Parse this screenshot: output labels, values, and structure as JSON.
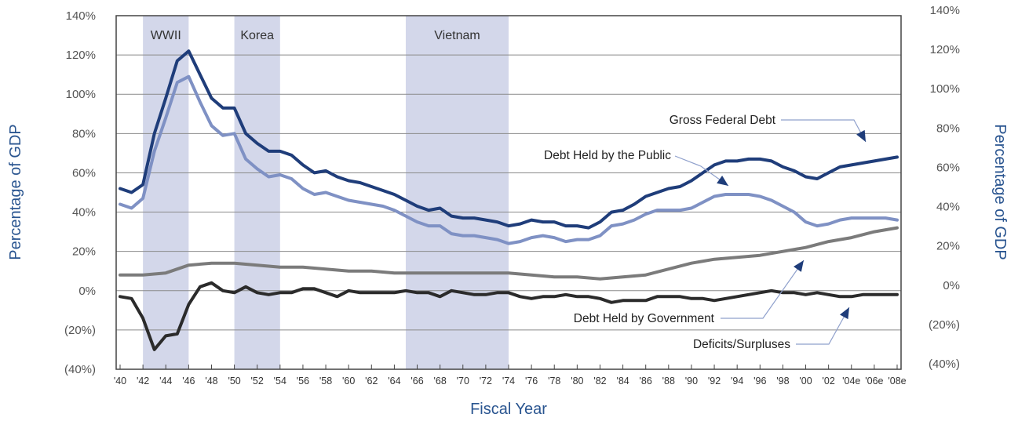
{
  "chart_data": {
    "type": "line",
    "xlabel": "Fiscal Year",
    "ylabel_left": "Percentage of GDP",
    "ylabel_right": "Percentage of GDP",
    "ylim": [
      -40,
      140
    ],
    "y_ticks": [
      140,
      120,
      100,
      80,
      60,
      40,
      20,
      0,
      -20,
      -40
    ],
    "y_tick_labels": [
      "140%",
      "120%",
      "100%",
      "80%",
      "60%",
      "40%",
      "20%",
      "0%",
      "(20%)",
      "(40%)"
    ],
    "x_start": 1940,
    "x_end": 2008,
    "x_tick_years": [
      1940,
      1942,
      1944,
      1946,
      1948,
      1950,
      1952,
      1954,
      1956,
      1958,
      1960,
      1962,
      1964,
      1966,
      1968,
      1970,
      1972,
      1974,
      1976,
      1978,
      1980,
      1982,
      1984,
      1986,
      1988,
      1990,
      1992,
      1994,
      1996,
      1998,
      2000,
      2002,
      2004,
      2006,
      2008
    ],
    "x_tick_labels": [
      "'40",
      "'42",
      "'44",
      "'46",
      "'48",
      "'50",
      "'52",
      "'54",
      "'56",
      "'58",
      "'60",
      "'62",
      "'64",
      "'66",
      "'68",
      "'70",
      "'72",
      "'74",
      "'76",
      "'78",
      "'80",
      "'82",
      "'84",
      "'86",
      "'88",
      "'90",
      "'92",
      "'94",
      "'96",
      "'98",
      "'00",
      "'02",
      "'04e",
      "'06e",
      "'08e"
    ],
    "grid": "horizontal",
    "shaded_periods": [
      {
        "label": "WWII",
        "start": 1942,
        "end": 1946
      },
      {
        "label": "Korea",
        "start": 1950,
        "end": 1954
      },
      {
        "label": "Vietnam",
        "start": 1965,
        "end": 1974
      }
    ],
    "series": [
      {
        "name": "Gross Federal Debt",
        "color": "#1f3d7a",
        "x": [
          1940,
          1941,
          1942,
          1943,
          1944,
          1945,
          1946,
          1947,
          1948,
          1949,
          1950,
          1951,
          1952,
          1953,
          1954,
          1955,
          1956,
          1957,
          1958,
          1959,
          1960,
          1961,
          1962,
          1963,
          1964,
          1965,
          1966,
          1967,
          1968,
          1969,
          1970,
          1971,
          1972,
          1973,
          1974,
          1975,
          1976,
          1977,
          1978,
          1979,
          1980,
          1981,
          1982,
          1983,
          1984,
          1985,
          1986,
          1987,
          1988,
          1989,
          1990,
          1991,
          1992,
          1993,
          1994,
          1995,
          1996,
          1997,
          1998,
          1999,
          2000,
          2001,
          2002,
          2003,
          2004,
          2005,
          2006,
          2007,
          2008
        ],
        "y": [
          52,
          50,
          54,
          80,
          98,
          117,
          122,
          110,
          98,
          93,
          93,
          80,
          75,
          71,
          71,
          69,
          64,
          60,
          61,
          58,
          56,
          55,
          53,
          51,
          49,
          46,
          43,
          41,
          42,
          38,
          37,
          37,
          36,
          35,
          33,
          34,
          36,
          35,
          35,
          33,
          33,
          32,
          35,
          40,
          41,
          44,
          48,
          50,
          52,
          53,
          56,
          60,
          64,
          66,
          66,
          67,
          67,
          66,
          63,
          61,
          58,
          57,
          60,
          63,
          64,
          65,
          66,
          67,
          68
        ]
      },
      {
        "name": "Debt Held by the Public",
        "color": "#7f91c4",
        "x": [
          1940,
          1941,
          1942,
          1943,
          1944,
          1945,
          1946,
          1947,
          1948,
          1949,
          1950,
          1951,
          1952,
          1953,
          1954,
          1955,
          1956,
          1957,
          1958,
          1959,
          1960,
          1961,
          1962,
          1963,
          1964,
          1965,
          1966,
          1967,
          1968,
          1969,
          1970,
          1971,
          1972,
          1973,
          1974,
          1975,
          1976,
          1977,
          1978,
          1979,
          1980,
          1981,
          1982,
          1983,
          1984,
          1985,
          1986,
          1987,
          1988,
          1989,
          1990,
          1991,
          1992,
          1993,
          1994,
          1995,
          1996,
          1997,
          1998,
          1999,
          2000,
          2001,
          2002,
          2003,
          2004,
          2005,
          2006,
          2007,
          2008
        ],
        "y": [
          44,
          42,
          47,
          71,
          88,
          106,
          109,
          96,
          84,
          79,
          80,
          67,
          62,
          58,
          59,
          57,
          52,
          49,
          50,
          48,
          46,
          45,
          44,
          43,
          41,
          38,
          35,
          33,
          33,
          29,
          28,
          28,
          27,
          26,
          24,
          25,
          27,
          28,
          27,
          25,
          26,
          26,
          28,
          33,
          34,
          36,
          39,
          41,
          41,
          41,
          42,
          45,
          48,
          49,
          49,
          49,
          48,
          46,
          43,
          40,
          35,
          33,
          34,
          36,
          37,
          37,
          37,
          37,
          36
        ]
      },
      {
        "name": "Debt Held by Government",
        "color": "#7b7b7b",
        "x": [
          1940,
          1942,
          1944,
          1946,
          1948,
          1950,
          1952,
          1954,
          1956,
          1958,
          1960,
          1962,
          1964,
          1966,
          1968,
          1970,
          1972,
          1974,
          1976,
          1978,
          1980,
          1982,
          1984,
          1986,
          1988,
          1990,
          1992,
          1994,
          1996,
          1998,
          2000,
          2002,
          2004,
          2006,
          2008
        ],
        "y": [
          8,
          8,
          9,
          13,
          14,
          14,
          13,
          12,
          12,
          11,
          10,
          10,
          9,
          9,
          9,
          9,
          9,
          9,
          8,
          7,
          7,
          6,
          7,
          8,
          11,
          14,
          16,
          17,
          18,
          20,
          22,
          25,
          27,
          30,
          32
        ]
      },
      {
        "name": "Deficits/Surpluses",
        "color": "#2b2b2b",
        "x": [
          1940,
          1941,
          1942,
          1943,
          1944,
          1945,
          1946,
          1947,
          1948,
          1949,
          1950,
          1951,
          1952,
          1953,
          1954,
          1955,
          1956,
          1957,
          1958,
          1959,
          1960,
          1961,
          1962,
          1963,
          1964,
          1965,
          1966,
          1967,
          1968,
          1969,
          1970,
          1971,
          1972,
          1973,
          1974,
          1975,
          1976,
          1977,
          1978,
          1979,
          1980,
          1981,
          1982,
          1983,
          1984,
          1985,
          1986,
          1987,
          1988,
          1989,
          1990,
          1991,
          1992,
          1993,
          1994,
          1995,
          1996,
          1997,
          1998,
          1999,
          2000,
          2001,
          2002,
          2003,
          2004,
          2005,
          2006,
          2007,
          2008
        ],
        "y": [
          -3,
          -4,
          -14,
          -30,
          -23,
          -22,
          -7,
          2,
          4,
          0,
          -1,
          2,
          -1,
          -2,
          -1,
          -1,
          1,
          1,
          -1,
          -3,
          0,
          -1,
          -1,
          -1,
          -1,
          0,
          -1,
          -1,
          -3,
          0,
          -1,
          -2,
          -2,
          -1,
          -1,
          -3,
          -4,
          -3,
          -3,
          -2,
          -3,
          -3,
          -4,
          -6,
          -5,
          -5,
          -5,
          -3,
          -3,
          -3,
          -4,
          -4,
          -5,
          -4,
          -3,
          -2,
          -1,
          0,
          -1,
          -1,
          -2,
          -1,
          -2,
          -3,
          -3,
          -2,
          -2,
          -2,
          -2
        ]
      }
    ],
    "annotations": [
      {
        "text": "Gross Federal Debt",
        "series": "Gross Federal Debt"
      },
      {
        "text": "Debt Held by the Public",
        "series": "Debt Held by the Public"
      },
      {
        "text": "Debt Held by Government",
        "series": "Debt Held by Government"
      },
      {
        "text": "Deficits/Surpluses",
        "series": "Deficits/Surpluses"
      }
    ]
  }
}
